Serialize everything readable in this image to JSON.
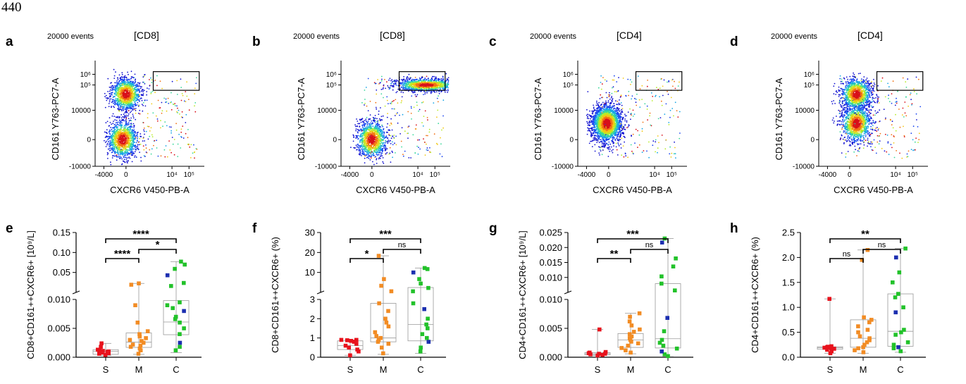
{
  "page_number": "440",
  "colors": {
    "S": "#e8121c",
    "M": "#f28c24",
    "C": "#22c22a",
    "C_alt": "#1c2fb0",
    "gate": "#000000"
  },
  "chart_data": [
    {
      "panel": "a",
      "type": "scatter",
      "events_label": "20000 events",
      "title": "[CD8]",
      "xlabel": "CXCR6 V450-PB-A",
      "ylabel": "CD161 Y763-PC7-A",
      "xticks": [
        "-4000",
        "0",
        "10⁴",
        "10⁵"
      ],
      "yticks": [
        "10⁶",
        "10⁵",
        "10000",
        "0",
        "-10000"
      ],
      "populations": [
        {
          "x": -0.4,
          "y": 0,
          "density": "high"
        },
        {
          "x": -0.3,
          "y": 1.7,
          "density": "medium"
        }
      ],
      "gate": {
        "x0": 0.5,
        "x1": 1.85,
        "y0": 1.85,
        "y1": 2.55
      }
    },
    {
      "panel": "b",
      "type": "scatter",
      "events_label": "20000 events",
      "title": "[CD8]",
      "xlabel": "CXCR6 V450-PB-A",
      "ylabel": "CD161 Y763-PC7-A",
      "xticks": [
        "-4000",
        "0",
        "10⁴",
        "10⁵"
      ],
      "yticks": [
        "10⁶",
        "10⁵",
        "10000",
        "0",
        "-10000"
      ],
      "populations": [
        {
          "x": -0.3,
          "y": 0,
          "density": "high"
        },
        {
          "x": 1.3,
          "y": 2.05,
          "density": "high"
        }
      ],
      "gate": {
        "x0": 0.5,
        "x1": 1.85,
        "y0": 1.85,
        "y1": 2.55
      }
    },
    {
      "panel": "c",
      "type": "scatter",
      "events_label": "20000 events",
      "title": "[CD4]",
      "xlabel": "CXCR6 V450-PB-A",
      "ylabel": "CD161 Y763-PC7-A",
      "xticks": [
        "-4000",
        "0",
        "10⁴",
        "10⁵"
      ],
      "yticks": [
        "10⁶",
        "10⁵",
        "10000",
        "0",
        "-10000"
      ],
      "populations": [
        {
          "x": -0.35,
          "y": 0.6,
          "density": "high"
        }
      ],
      "gate": {
        "x0": 0.5,
        "x1": 1.85,
        "y0": 1.85,
        "y1": 2.55
      }
    },
    {
      "panel": "d",
      "type": "scatter",
      "events_label": "20000 events",
      "title": "[CD4]",
      "xlabel": "CXCR6 V450-PB-A",
      "ylabel": "CD161 Y763-PC7-A",
      "xticks": [
        "-4000",
        "0",
        "10⁴",
        "10⁵"
      ],
      "yticks": [
        "10⁶",
        "10⁵",
        "10000",
        "0",
        "-10000"
      ],
      "populations": [
        {
          "x": -0.1,
          "y": 0.6,
          "density": "high"
        },
        {
          "x": -0.1,
          "y": 1.7,
          "density": "medium"
        }
      ],
      "gate": {
        "x0": 0.5,
        "x1": 1.85,
        "y0": 1.85,
        "y1": 2.55
      }
    },
    {
      "panel": "e",
      "type": "box",
      "ylabel": "CD8+CD161++CXCR6+ [10⁹/L]",
      "categories": [
        "S",
        "M",
        "C"
      ],
      "y_lower": {
        "range": [
          0,
          0.01
        ],
        "ticks": [
          "0.000",
          "0.005",
          "0.010"
        ]
      },
      "y_upper": {
        "range": [
          0.01,
          0.15
        ],
        "ticks": [
          "0.05",
          "0.10",
          "0.15"
        ]
      },
      "box": {
        "S": [
          0.0003,
          0.0005,
          0.001,
          0.0013,
          0.0024
        ],
        "M": [
          0.0005,
          0.0017,
          0.0026,
          0.0042,
          0.031
        ],
        "C": [
          0.0008,
          0.0039,
          0.0061,
          0.0098,
          0.082
        ]
      },
      "points": {
        "S": [
          0.0004,
          0.0006,
          0.0007,
          0.0008,
          0.0009,
          0.001,
          0.0011,
          0.0012,
          0.0013,
          0.0018,
          0.0024
        ],
        "M": [
          0.0006,
          0.0012,
          0.0015,
          0.0018,
          0.002,
          0.0022,
          0.0025,
          0.0028,
          0.003,
          0.0033,
          0.0036,
          0.004,
          0.0045,
          0.006,
          0.009,
          0.028,
          0.031
        ],
        "C": [
          0.0012,
          0.0018,
          0.0025,
          0.004,
          0.005,
          0.006,
          0.0066,
          0.007,
          0.008,
          0.0085,
          0.009,
          0.0095,
          0.025,
          0.032,
          0.05,
          0.065,
          0.075,
          0.082
        ]
      },
      "comparisons": [
        {
          "from": "S",
          "to": "M",
          "label": "****"
        },
        {
          "from": "M",
          "to": "C",
          "label": "*"
        },
        {
          "from": "S",
          "to": "C",
          "label": "****"
        }
      ]
    },
    {
      "panel": "f",
      "type": "box",
      "ylabel": "CD8+CD161++CXCR6+ (%)",
      "categories": [
        "S",
        "M",
        "C"
      ],
      "y_lower": {
        "range": [
          0,
          3
        ],
        "ticks": [
          "0",
          "1",
          "2",
          "3"
        ]
      },
      "y_upper": {
        "range": [
          3,
          30
        ],
        "ticks": [
          "10",
          "20",
          "30"
        ]
      },
      "box": {
        "S": [
          0.1,
          0.4,
          0.6,
          0.85,
          0.9
        ],
        "M": [
          0.15,
          0.8,
          1.0,
          2.8,
          19.5
        ],
        "C": [
          0.2,
          0.85,
          1.7,
          5.2,
          14.0
        ]
      },
      "points": {
        "S": [
          0.1,
          0.3,
          0.4,
          0.5,
          0.6,
          0.7,
          0.8,
          0.85,
          0.9,
          0.9,
          0.88
        ],
        "M": [
          0.2,
          0.5,
          0.7,
          0.8,
          0.9,
          1.0,
          1.1,
          1.3,
          1.6,
          1.8,
          2.0,
          2.4,
          2.8,
          3.5,
          6.0,
          9.0,
          19.5
        ],
        "C": [
          0.3,
          0.5,
          0.8,
          1.0,
          1.2,
          1.5,
          1.7,
          2.0,
          2.5,
          2.8,
          3.5,
          5.0,
          7.0,
          9.0,
          12.0,
          13.5,
          14.0
        ]
      },
      "comparisons": [
        {
          "from": "S",
          "to": "M",
          "label": "*"
        },
        {
          "from": "M",
          "to": "C",
          "label": "ns"
        },
        {
          "from": "S",
          "to": "C",
          "label": "***"
        }
      ]
    },
    {
      "panel": "g",
      "type": "box",
      "ylabel": "CD4+CD161++CXCR6+ [10⁹/L]",
      "categories": [
        "S",
        "M",
        "C"
      ],
      "y_lower": {
        "range": [
          0,
          0.01
        ],
        "ticks": [
          "0.000",
          "0.005",
          "0.010"
        ]
      },
      "y_upper": {
        "range": [
          0.01,
          0.025
        ],
        "ticks": [
          "0.010",
          "0.015",
          "0.020",
          "0.025"
        ]
      },
      "box": {
        "S": [
          0.0003,
          0.0004,
          0.0006,
          0.0008,
          0.0048
        ],
        "M": [
          0.0006,
          0.0017,
          0.003,
          0.0041,
          0.0076
        ],
        "C": [
          0.0001,
          0.0016,
          0.0032,
          0.0122,
          0.0235
        ]
      },
      "points": {
        "S": [
          0.0003,
          0.0004,
          0.0005,
          0.0006,
          0.0006,
          0.0007,
          0.0008,
          0.0009,
          0.0048
        ],
        "M": [
          0.0008,
          0.0012,
          0.0016,
          0.002,
          0.0024,
          0.0027,
          0.003,
          0.0033,
          0.0036,
          0.004,
          0.0044,
          0.0048,
          0.0055,
          0.0062,
          0.007,
          0.0076
        ],
        "C": [
          0.0002,
          0.0005,
          0.001,
          0.0015,
          0.002,
          0.0025,
          0.003,
          0.0045,
          0.0068,
          0.0105,
          0.0122,
          0.014,
          0.0165,
          0.0185,
          0.0225,
          0.0235
        ]
      },
      "comparisons": [
        {
          "from": "S",
          "to": "M",
          "label": "**"
        },
        {
          "from": "M",
          "to": "C",
          "label": "ns"
        },
        {
          "from": "S",
          "to": "C",
          "label": "***"
        }
      ]
    },
    {
      "panel": "h",
      "type": "box",
      "ylabel": "CD4+CD161++CXCR6+ (%)",
      "categories": [
        "S",
        "M",
        "C"
      ],
      "y_lower": {
        "range": [
          0,
          2.5
        ],
        "ticks": [
          "0.0",
          "0.5",
          "1.0",
          "1.5",
          "2.0",
          "2.5"
        ]
      },
      "box": {
        "S": [
          0.08,
          0.16,
          0.19,
          0.21,
          1.17
        ],
        "M": [
          0.08,
          0.2,
          0.38,
          0.75,
          2.15
        ],
        "C": [
          0.1,
          0.22,
          0.52,
          1.27,
          2.18
        ]
      },
      "points": {
        "S": [
          0.08,
          0.12,
          0.15,
          0.17,
          0.18,
          0.19,
          0.2,
          0.2,
          0.21,
          0.22,
          1.17
        ],
        "M": [
          0.1,
          0.14,
          0.18,
          0.2,
          0.25,
          0.3,
          0.34,
          0.38,
          0.42,
          0.5,
          0.55,
          0.62,
          0.7,
          0.75,
          0.8,
          1.95,
          2.15
        ],
        "C": [
          0.12,
          0.18,
          0.2,
          0.25,
          0.3,
          0.45,
          0.5,
          0.55,
          0.9,
          1.0,
          1.2,
          1.27,
          1.5,
          1.7,
          2.0,
          2.18
        ]
      },
      "comparisons": [
        {
          "from": "S",
          "to": "M",
          "label": "ns"
        },
        {
          "from": "M",
          "to": "C",
          "label": "ns"
        },
        {
          "from": "S",
          "to": "C",
          "label": "**"
        }
      ]
    }
  ]
}
